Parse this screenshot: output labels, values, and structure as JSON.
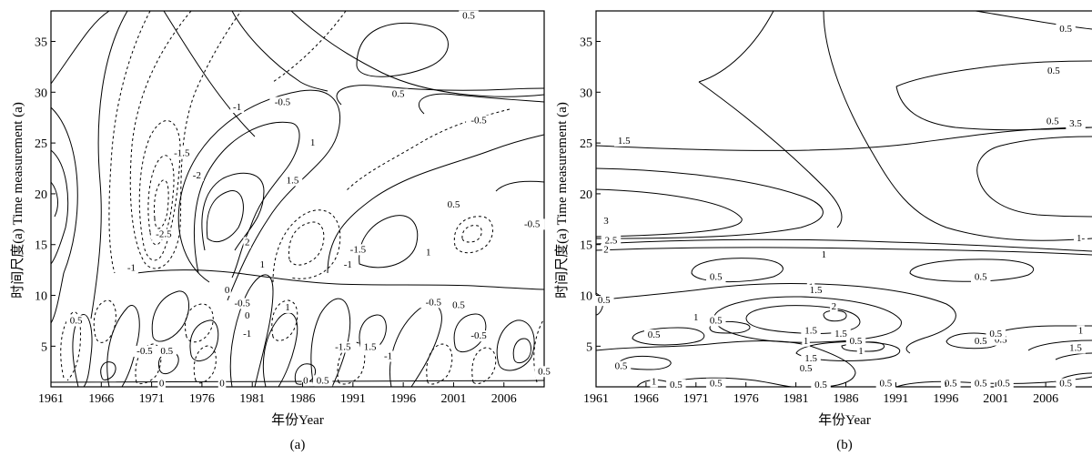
{
  "chart_data": [
    {
      "type": "contour",
      "panel_label": "(a)",
      "xlabel": "年份Year",
      "ylabel": "时间尺度(a) Time measurement (a)",
      "xlim": [
        1961,
        2010
      ],
      "ylim": [
        1,
        38
      ],
      "x_ticks": [
        "1961",
        "1966",
        "1971",
        "1976",
        "1981",
        "1986",
        "1991",
        "1996",
        "2001",
        "2006"
      ],
      "y_ticks": [
        "5",
        "10",
        "15",
        "20",
        "25",
        "30",
        "35"
      ],
      "grid": false,
      "line_styles": {
        "positive": "solid",
        "negative": "dashed"
      },
      "contour_labels": [
        {
          "text": "0.5",
          "x": 2002.5,
          "y": 37.5
        },
        {
          "text": "-1",
          "x": 1979.5,
          "y": 28.5
        },
        {
          "text": "-0.5",
          "x": 1984.0,
          "y": 29.0
        },
        {
          "text": "0.5",
          "x": 1995.5,
          "y": 29.8
        },
        {
          "text": "-0.5",
          "x": 2003.5,
          "y": 27.2
        },
        {
          "text": "-1.5",
          "x": 1974.0,
          "y": 24.0
        },
        {
          "text": "1",
          "x": 1987.0,
          "y": 25.0
        },
        {
          "text": "-2",
          "x": 1975.5,
          "y": 21.8
        },
        {
          "text": "1.5",
          "x": 1985.0,
          "y": 21.3
        },
        {
          "text": "0.5",
          "x": 2001.0,
          "y": 18.9
        },
        {
          "text": "-0.5",
          "x": 2008.8,
          "y": 17.0
        },
        {
          "text": "-2.5",
          "x": 1972.2,
          "y": 16.0
        },
        {
          "text": "2",
          "x": 1980.5,
          "y": 15.2
        },
        {
          "text": "-1.5",
          "x": 1991.5,
          "y": 14.5
        },
        {
          "text": "-1",
          "x": 1969.0,
          "y": 12.7
        },
        {
          "text": "1",
          "x": 1982.0,
          "y": 13.0
        },
        {
          "text": "-1",
          "x": 1990.5,
          "y": 13.0
        },
        {
          "text": "1",
          "x": 1998.5,
          "y": 14.2
        },
        {
          "text": "0",
          "x": 1978.5,
          "y": 10.5
        },
        {
          "text": "-0.5",
          "x": 1980.0,
          "y": 9.2
        },
        {
          "text": "0",
          "x": 1980.5,
          "y": 8.0
        },
        {
          "text": "1",
          "x": 1984.5,
          "y": 8.8
        },
        {
          "text": "-0.5",
          "x": 1999.0,
          "y": 9.3
        },
        {
          "text": "0.5",
          "x": 2001.5,
          "y": 9.0
        },
        {
          "text": "0.5",
          "x": 1963.5,
          "y": 7.5
        },
        {
          "text": "-1",
          "x": 1980.5,
          "y": 6.2
        },
        {
          "text": "-0.5",
          "x": 2003.5,
          "y": 6.0
        },
        {
          "text": "-0.5",
          "x": 1970.3,
          "y": 4.5
        },
        {
          "text": "0.5",
          "x": 1972.5,
          "y": 4.5
        },
        {
          "text": "-1.5",
          "x": 1990.0,
          "y": 4.9
        },
        {
          "text": "1.5",
          "x": 1992.7,
          "y": 4.9
        },
        {
          "text": "-1",
          "x": 1994.5,
          "y": 4.0
        },
        {
          "text": "0.5",
          "x": 2010.0,
          "y": 2.5
        },
        {
          "text": "0",
          "x": 1986.3,
          "y": 1.6
        },
        {
          "text": "0.5",
          "x": 1988.0,
          "y": 1.6
        },
        {
          "text": "0",
          "x": 1972.0,
          "y": 1.3
        },
        {
          "text": "0",
          "x": 1978.0,
          "y": 1.3
        }
      ]
    },
    {
      "type": "contour",
      "panel_label": "(b)",
      "xlabel": "年份Year",
      "ylabel": "时间尺度(a) Time measurement (a)",
      "xlim": [
        1961,
        2010
      ],
      "ylim": [
        1,
        38
      ],
      "x_ticks": [
        "1961",
        "1966",
        "1971",
        "1976",
        "1981",
        "1986",
        "1991",
        "1996",
        "2001",
        "2006"
      ],
      "y_ticks": [
        "5",
        "10",
        "15",
        "20",
        "25",
        "30",
        "35"
      ],
      "grid": false,
      "line_styles": {
        "all": "solid"
      },
      "contour_labels": [
        {
          "text": "0.5",
          "x": 2008.0,
          "y": 36.2
        },
        {
          "text": "0.5",
          "x": 2006.8,
          "y": 32.1
        },
        {
          "text": "0.5",
          "x": 2006.7,
          "y": 27.1
        },
        {
          "text": "3.5",
          "x": 2009.0,
          "y": 26.9
        },
        {
          "text": "1.5",
          "x": 1963.8,
          "y": 25.2
        },
        {
          "text": "3",
          "x": 1962.0,
          "y": 17.3
        },
        {
          "text": "2.5",
          "x": 1962.5,
          "y": 15.4
        },
        {
          "text": "2",
          "x": 1962.0,
          "y": 14.5
        },
        {
          "text": "1-",
          "x": 2009.5,
          "y": 15.6
        },
        {
          "text": "1",
          "x": 1983.8,
          "y": 14.0
        },
        {
          "text": "0.5",
          "x": 1973.0,
          "y": 11.8
        },
        {
          "text": "0.5",
          "x": 1999.5,
          "y": 11.8
        },
        {
          "text": "1",
          "x": 1982.5,
          "y": 10.8
        },
        {
          "text": "1.5",
          "x": 1983.0,
          "y": 10.5
        },
        {
          "text": "0.5",
          "x": 1961.8,
          "y": 9.5
        },
        {
          "text": "2",
          "x": 1984.8,
          "y": 8.9
        },
        {
          "text": "1",
          "x": 1971.0,
          "y": 7.8
        },
        {
          "text": "0.5",
          "x": 1973.0,
          "y": 7.5
        },
        {
          "text": "1.5",
          "x": 1982.5,
          "y": 6.5
        },
        {
          "text": "0.5",
          "x": 1966.8,
          "y": 6.1
        },
        {
          "text": "1.5",
          "x": 1985.5,
          "y": 6.2
        },
        {
          "text": "0.5",
          "x": 1987.0,
          "y": 5.5
        },
        {
          "text": "1",
          "x": 1987.5,
          "y": 4.5
        },
        {
          "text": "1",
          "x": 1982.0,
          "y": 5.5
        },
        {
          "text": "0.5",
          "x": 2001.5,
          "y": 5.6
        },
        {
          "text": "0.5",
          "x": 2001.0,
          "y": 6.2
        },
        {
          "text": "0.5",
          "x": 1999.5,
          "y": 5.5
        },
        {
          "text": "1",
          "x": 2009.5,
          "y": 6.5
        },
        {
          "text": "1.5",
          "x": 2009.0,
          "y": 4.8
        },
        {
          "text": "1.5",
          "x": 1982.5,
          "y": 3.8
        },
        {
          "text": "0.5",
          "x": 1982.0,
          "y": 2.8
        },
        {
          "text": "0.5",
          "x": 1963.5,
          "y": 3.0
        },
        {
          "text": "1",
          "x": 1966.8,
          "y": 1.5
        },
        {
          "text": "0.5",
          "x": 1969.0,
          "y": 1.2
        },
        {
          "text": "0.5",
          "x": 1973.0,
          "y": 1.3
        },
        {
          "text": "0.5",
          "x": 1983.5,
          "y": 1.2
        },
        {
          "text": "0.5",
          "x": 1990.0,
          "y": 1.3
        },
        {
          "text": "0.5",
          "x": 1996.5,
          "y": 1.3
        },
        {
          "text": "0.5",
          "x": 1999.5,
          "y": 1.3
        },
        {
          "text": "0.5",
          "x": 2001.8,
          "y": 1.3
        },
        {
          "text": "0.5",
          "x": 2008.0,
          "y": 1.3
        }
      ]
    }
  ]
}
